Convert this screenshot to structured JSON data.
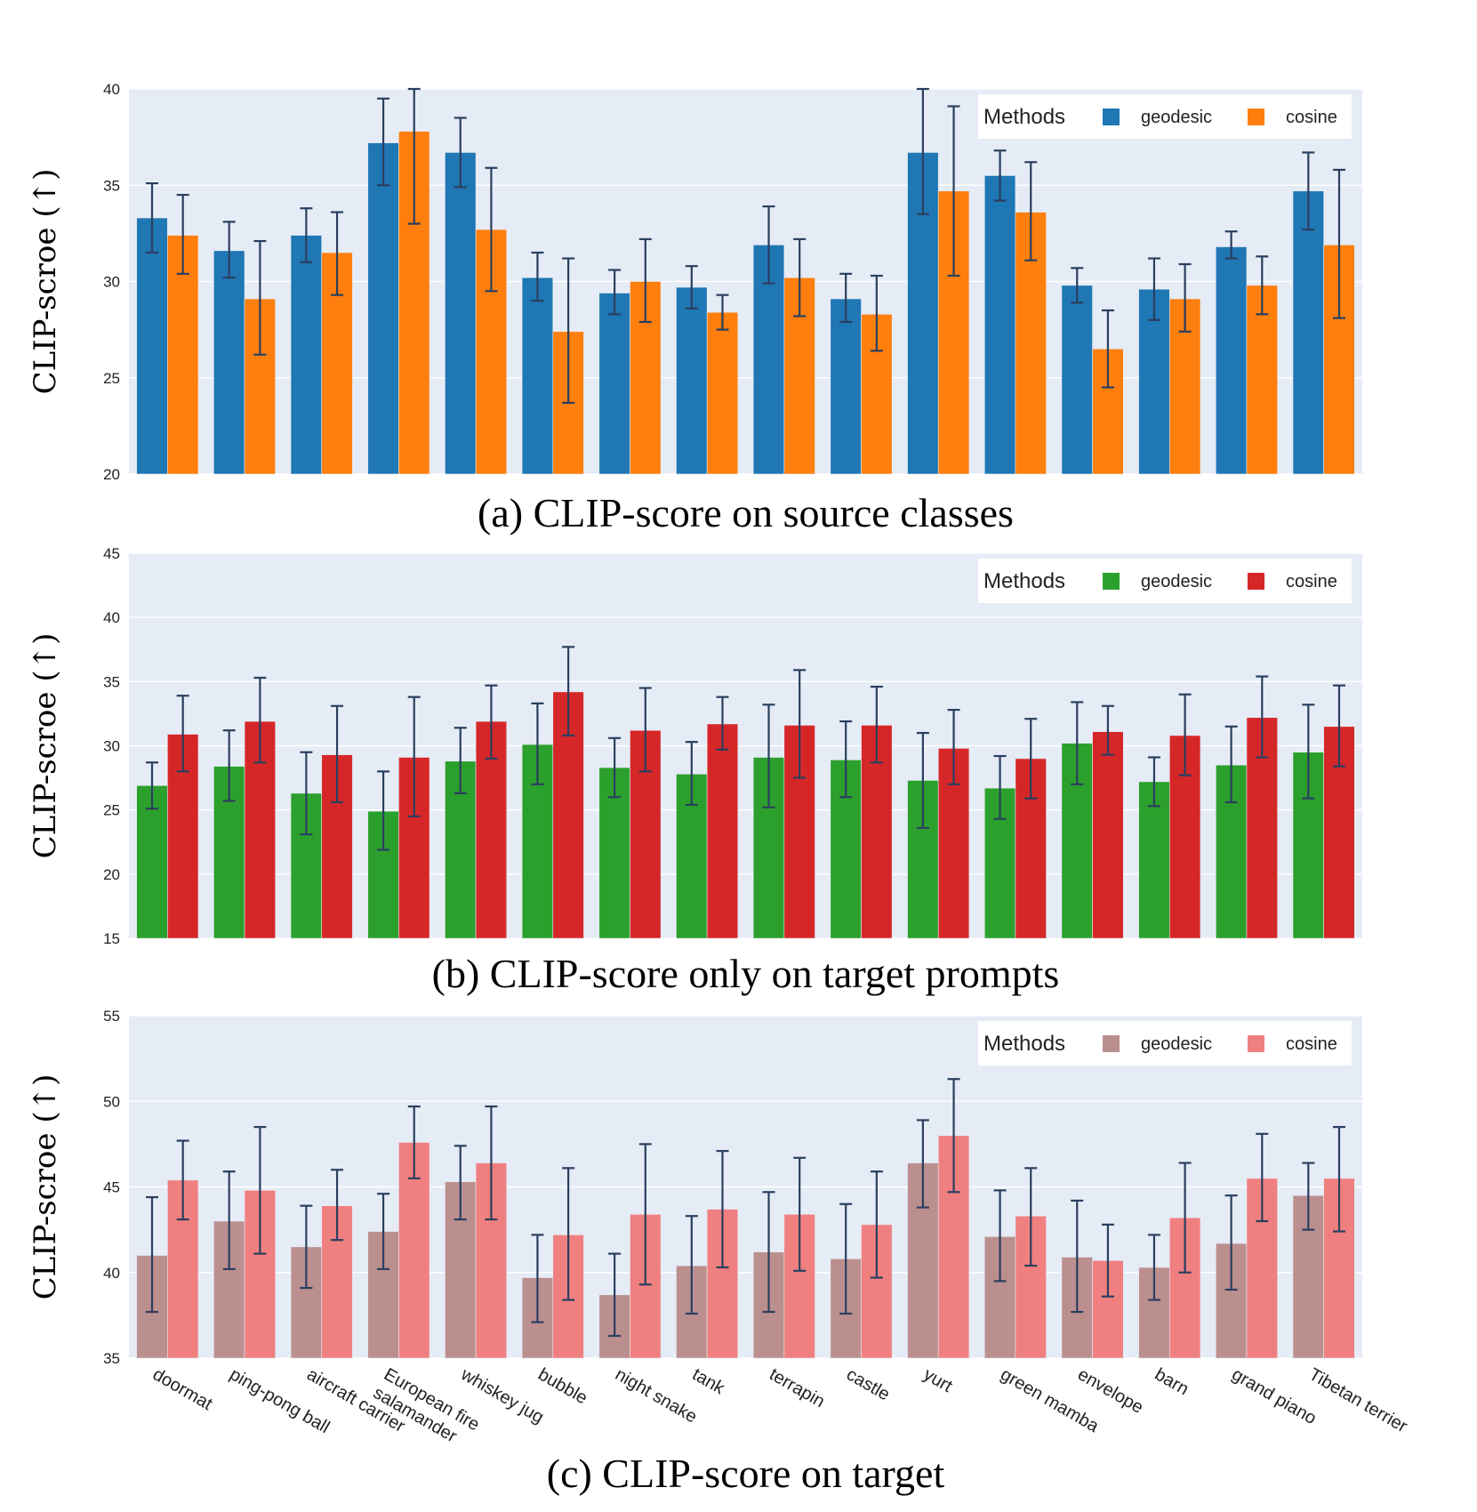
{
  "chart_data": [
    {
      "type": "bar",
      "caption": "(a) CLIP-score on source classes",
      "ylabel": "CLIP-scroe (↑)",
      "ylim": [
        20,
        40
      ],
      "yticks": [
        20,
        25,
        30,
        35,
        40
      ],
      "legend": {
        "title": "Methods",
        "position": "top-right"
      },
      "categories": [
        "doormat",
        "ping-pong ball",
        "aircraft carrier",
        "European fire salamander",
        "whiskey jug",
        "bubble",
        "night snake",
        "tank",
        "terrapin",
        "castle",
        "yurt",
        "green mamba",
        "envelope",
        "barn",
        "grand piano",
        "Tibetan terrier"
      ],
      "series": [
        {
          "name": "geodesic",
          "color": "#1f77b4",
          "values": [
            33.3,
            31.6,
            32.4,
            37.2,
            36.7,
            30.2,
            29.4,
            29.7,
            31.9,
            29.1,
            36.7,
            35.5,
            29.8,
            29.6,
            31.8,
            34.7
          ],
          "error_low": [
            31.5,
            30.2,
            31.0,
            35.0,
            34.9,
            29.0,
            28.3,
            28.6,
            29.9,
            27.9,
            33.5,
            34.2,
            28.9,
            28.0,
            31.2,
            32.7
          ],
          "error_high": [
            35.1,
            33.1,
            33.8,
            39.5,
            38.5,
            31.5,
            30.6,
            30.8,
            33.9,
            30.4,
            40.0,
            36.8,
            30.7,
            31.2,
            32.6,
            36.7
          ]
        },
        {
          "name": "cosine",
          "color": "#ff7f0e",
          "values": [
            32.4,
            29.1,
            31.5,
            37.8,
            32.7,
            27.4,
            30.0,
            28.4,
            30.2,
            28.3,
            34.7,
            33.6,
            26.5,
            29.1,
            29.8,
            31.9
          ],
          "error_low": [
            30.4,
            26.2,
            29.3,
            33.0,
            29.5,
            23.7,
            27.9,
            27.5,
            28.2,
            26.4,
            30.3,
            31.1,
            24.5,
            27.4,
            28.3,
            28.1
          ],
          "error_high": [
            34.5,
            32.1,
            33.6,
            40.0,
            35.9,
            31.2,
            32.2,
            29.3,
            32.2,
            30.3,
            39.1,
            36.2,
            28.5,
            30.9,
            31.3,
            35.8
          ]
        }
      ]
    },
    {
      "type": "bar",
      "caption": "(b) CLIP-score only on target prompts",
      "ylabel": "CLIP-scroe (↑)",
      "ylim": [
        15,
        45
      ],
      "yticks": [
        15,
        20,
        25,
        30,
        35,
        40,
        45
      ],
      "legend": {
        "title": "Methods",
        "position": "top-right"
      },
      "categories": [
        "doormat",
        "ping-pong ball",
        "aircraft carrier",
        "European fire salamander",
        "whiskey jug",
        "bubble",
        "night snake",
        "tank",
        "terrapin",
        "castle",
        "yurt",
        "green mamba",
        "envelope",
        "barn",
        "grand piano",
        "Tibetan terrier"
      ],
      "series": [
        {
          "name": "geodesic",
          "color": "#2ca02c",
          "values": [
            26.9,
            28.4,
            26.3,
            24.9,
            28.8,
            30.1,
            28.3,
            27.8,
            29.1,
            28.9,
            27.3,
            26.7,
            30.2,
            27.2,
            28.5,
            29.5
          ],
          "error_low": [
            25.1,
            25.7,
            23.1,
            21.9,
            26.3,
            27.0,
            26.0,
            25.4,
            25.2,
            26.0,
            23.6,
            24.3,
            27.0,
            25.3,
            25.6,
            25.9
          ],
          "error_high": [
            28.7,
            31.2,
            29.5,
            28.0,
            31.4,
            33.3,
            30.6,
            30.3,
            33.2,
            31.9,
            31.0,
            29.2,
            33.4,
            29.1,
            31.5,
            33.2
          ]
        },
        {
          "name": "cosine",
          "color": "#d62728",
          "values": [
            30.9,
            31.9,
            29.3,
            29.1,
            31.9,
            34.2,
            31.2,
            31.7,
            31.6,
            31.6,
            29.8,
            29.0,
            31.1,
            30.8,
            32.2,
            31.5
          ],
          "error_low": [
            28.0,
            28.7,
            25.6,
            24.5,
            29.0,
            30.8,
            28.0,
            29.7,
            27.5,
            28.7,
            27.0,
            25.9,
            29.3,
            27.7,
            29.1,
            28.4
          ],
          "error_high": [
            33.9,
            35.3,
            33.1,
            33.8,
            34.7,
            37.7,
            34.5,
            33.8,
            35.9,
            34.6,
            32.8,
            32.1,
            33.1,
            34.0,
            35.4,
            34.7
          ]
        }
      ]
    },
    {
      "type": "bar",
      "caption": "(c) CLIP-score on target",
      "ylabel": "CLIP-scroe (↑)",
      "ylim": [
        35,
        55
      ],
      "yticks": [
        35,
        40,
        45,
        50,
        55
      ],
      "legend": {
        "title": "Methods",
        "position": "top-right"
      },
      "categories": [
        "doormat",
        "ping-pong ball",
        "aircraft carrier",
        "European fire salamander",
        "whiskey jug",
        "bubble",
        "night snake",
        "tank",
        "terrapin",
        "castle",
        "yurt",
        "green mamba",
        "envelope",
        "barn",
        "grand piano",
        "Tibetan terrier"
      ],
      "category_display": [
        [
          "doormat"
        ],
        [
          "ping-pong ball"
        ],
        [
          "aircraft carrier"
        ],
        [
          "European fire",
          "salamander"
        ],
        [
          "whiskey jug"
        ],
        [
          "bubble"
        ],
        [
          "night snake"
        ],
        [
          "tank"
        ],
        [
          "terrapin"
        ],
        [
          "castle"
        ],
        [
          "yurt"
        ],
        [
          "green mamba"
        ],
        [
          "envelope"
        ],
        [
          "barn"
        ],
        [
          "grand piano"
        ],
        [
          "Tibetan terrier"
        ]
      ],
      "series": [
        {
          "name": "geodesic",
          "color": "#bc8f8f",
          "values": [
            41.0,
            43.0,
            41.5,
            42.4,
            45.3,
            39.7,
            38.7,
            40.4,
            41.2,
            40.8,
            46.4,
            42.1,
            40.9,
            40.3,
            41.7,
            44.5
          ],
          "error_low": [
            37.7,
            40.2,
            39.1,
            40.2,
            43.1,
            37.1,
            36.3,
            37.6,
            37.7,
            37.6,
            43.8,
            39.5,
            37.7,
            38.4,
            39.0,
            42.5
          ],
          "error_high": [
            44.4,
            45.9,
            43.9,
            44.6,
            47.4,
            42.2,
            41.1,
            43.3,
            44.7,
            44.0,
            48.9,
            44.8,
            44.2,
            42.2,
            44.5,
            46.4
          ]
        },
        {
          "name": "cosine",
          "color": "#f08080",
          "values": [
            45.4,
            44.8,
            43.9,
            47.6,
            46.4,
            42.2,
            43.4,
            43.7,
            43.4,
            42.8,
            48.0,
            43.3,
            40.7,
            43.2,
            45.5,
            45.5
          ],
          "error_low": [
            43.1,
            41.1,
            41.9,
            45.5,
            43.1,
            38.4,
            39.3,
            40.3,
            40.1,
            39.7,
            44.7,
            40.4,
            38.6,
            40.0,
            43.0,
            42.4
          ],
          "error_high": [
            47.7,
            48.5,
            46.0,
            49.7,
            49.7,
            46.1,
            47.5,
            47.1,
            46.7,
            45.9,
            51.3,
            46.1,
            42.8,
            46.4,
            48.1,
            48.5
          ]
        }
      ]
    }
  ]
}
